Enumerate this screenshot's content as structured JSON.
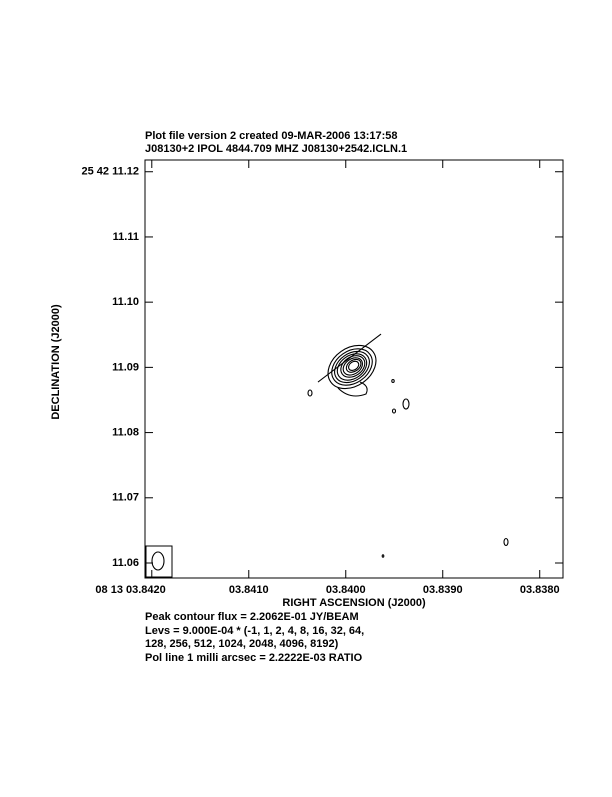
{
  "chart_data": {
    "type": "contour",
    "title": "Plot file version 2  created 09-MAR-2006 13:17:58",
    "subtitle": "J08130+2  IPOL  4844.709 MHZ  J08130+2542.ICLN.1",
    "x_label": "RIGHT ASCENSION (J2000)",
    "y_label": "DECLINATION (J2000)",
    "xlim": [
      3.84207,
      3.83776
    ],
    "ylim": [
      11.0577,
      11.1218
    ],
    "xticks": [
      {
        "value": 3.842,
        "label": "08 13 03.8420"
      },
      {
        "value": 3.841,
        "label": "03.8410"
      },
      {
        "value": 3.84,
        "label": "03.8400"
      },
      {
        "value": 3.839,
        "label": "03.8390"
      },
      {
        "value": 3.838,
        "label": "03.8380"
      }
    ],
    "yticks": [
      {
        "value": 11.12,
        "label": "25 42 11.12"
      },
      11.11,
      {
        "value": 11.1,
        "label": "11.10"
      },
      11.09,
      11.08,
      11.07,
      11.06
    ],
    "annotations": [
      "Peak contour flux =  2.2062E-01 JY/BEAM",
      "Levs = 9.000E-04 * (-1, 1, 2, 4, 8, 16, 32, 64,",
      "128, 256, 512, 1024, 2048, 4096, 8192)",
      "Pol line 1 milli arcsec =  2.2222E-03 RATIO"
    ]
  }
}
